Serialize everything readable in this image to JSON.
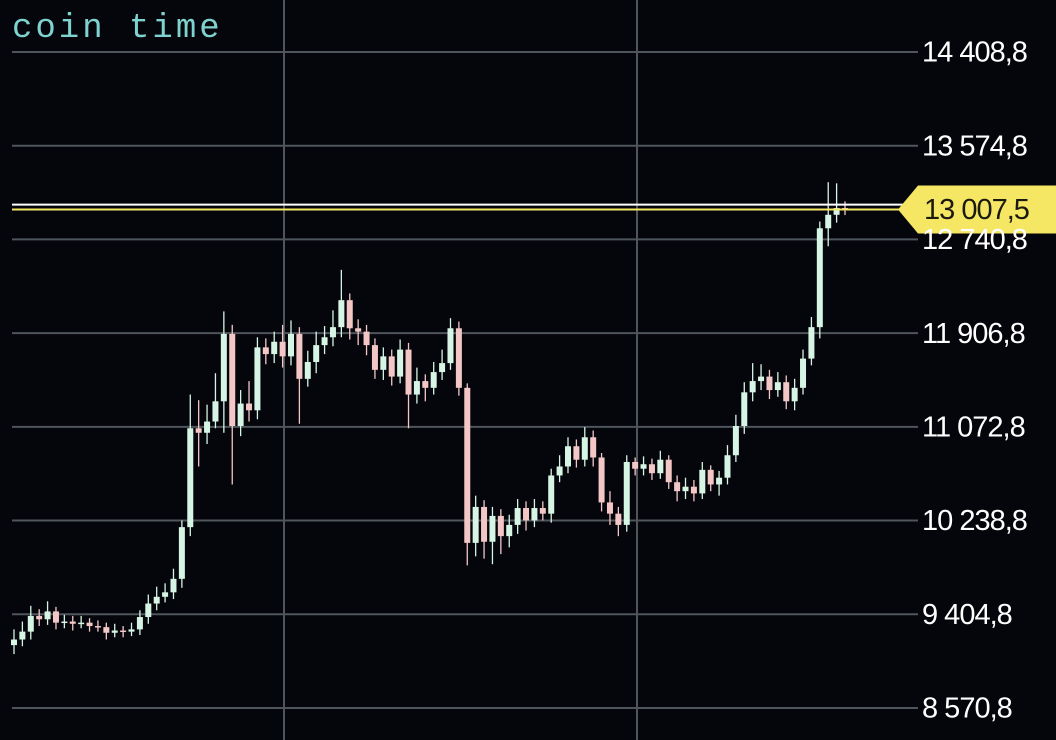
{
  "chart_data": {
    "type": "candlestick",
    "title": "coin time",
    "ylim": [
      8285.6,
      14871.6
    ],
    "yticks": [
      {
        "value": 14408.8,
        "label": "14 408,8"
      },
      {
        "value": 13574.8,
        "label": "13 574,8"
      },
      {
        "value": 12740.8,
        "label": "12 740,8"
      },
      {
        "value": 11906.8,
        "label": "11 906,8"
      },
      {
        "value": 11072.8,
        "label": "11 072,8"
      },
      {
        "value": 10238.8,
        "label": "10 238,8"
      },
      {
        "value": 9404.8,
        "label": "9 404,8"
      },
      {
        "value": 8570.8,
        "label": "8 570,8"
      }
    ],
    "grid": true,
    "up_color": "#d6f5e4",
    "down_color": "#f4c7c7",
    "open": [
      9130,
      9180,
      9250,
      9390,
      9360,
      9430,
      9330,
      9340,
      9320,
      9330,
      9300,
      9290,
      9240,
      9260,
      9250,
      9270,
      9380,
      9500,
      9560,
      9600,
      9720,
      10180,
      11060,
      11020,
      11120,
      11300,
      11900,
      11080,
      11280,
      11220,
      11780,
      11720,
      11830,
      11700,
      11900,
      11500,
      11650,
      11800,
      11870,
      11960,
      12200,
      11950,
      11920,
      11800,
      11580,
      11700,
      11520,
      11760,
      11360,
      11480,
      11420,
      11560,
      11640,
      11950,
      11420,
      10040,
      10360,
      10050,
      10280,
      10100,
      10200,
      10350,
      10240,
      10350,
      10300,
      10640,
      10720,
      10900,
      10780,
      10980,
      10800,
      10400,
      10300,
      10200,
      10760,
      10700,
      10740,
      10660,
      10780,
      10580,
      10500,
      10540,
      10480,
      10690,
      10560,
      10620,
      10820,
      11080,
      11380,
      11480,
      11520,
      11400,
      11470,
      11300,
      11420,
      11680,
      11960,
      12840,
      12960,
      13020
    ],
    "high": [
      9270,
      9340,
      9480,
      9450,
      9520,
      9470,
      9400,
      9390,
      9390,
      9370,
      9350,
      9330,
      9320,
      9300,
      9330,
      9440,
      9580,
      9650,
      9680,
      9810,
      10240,
      11360,
      11310,
      11270,
      11550,
      12100,
      11980,
      11400,
      11480,
      11870,
      11860,
      11920,
      11980,
      12020,
      11960,
      11750,
      11920,
      11970,
      12110,
      12470,
      12260,
      12030,
      11980,
      11860,
      11780,
      11760,
      11850,
      11820,
      11600,
      11540,
      11650,
      11760,
      12040,
      12010,
      11460,
      10460,
      10420,
      10360,
      10340,
      10290,
      10430,
      10410,
      10430,
      10410,
      10700,
      10820,
      10980,
      10960,
      11070,
      11040,
      10840,
      10500,
      10360,
      10820,
      10800,
      10810,
      10790,
      10860,
      10820,
      10640,
      10620,
      10600,
      10760,
      10730,
      10680,
      10910,
      11180,
      11470,
      11640,
      11630,
      11580,
      11560,
      11530,
      11500,
      11760,
      12050,
      12900,
      13250,
      13240,
      13080
    ],
    "low": [
      9050,
      9120,
      9180,
      9300,
      9310,
      9270,
      9280,
      9260,
      9280,
      9250,
      9250,
      9180,
      9200,
      9200,
      9210,
      9220,
      9320,
      9440,
      9510,
      9540,
      9640,
      10100,
      10720,
      10920,
      11060,
      11020,
      10560,
      10990,
      11120,
      11140,
      11630,
      11640,
      11600,
      11620,
      11100,
      11430,
      11550,
      11720,
      11790,
      11870,
      11850,
      11800,
      11710,
      11500,
      11490,
      11440,
      11460,
      11060,
      11280,
      11300,
      11360,
      11490,
      11580,
      11350,
      9840,
      9920,
      9900,
      9850,
      9940,
      10000,
      10120,
      10150,
      10180,
      10240,
      10220,
      10580,
      10660,
      10710,
      10720,
      10720,
      10320,
      10200,
      10100,
      10140,
      10640,
      10640,
      10600,
      10610,
      10520,
      10410,
      10430,
      10410,
      10430,
      10500,
      10460,
      10560,
      10760,
      11010,
      11300,
      11400,
      11320,
      11340,
      11230,
      11220,
      11360,
      11620,
      11860,
      12680,
      12890,
      12957.5
    ],
    "close": [
      9180,
      9250,
      9390,
      9360,
      9430,
      9330,
      9340,
      9320,
      9330,
      9300,
      9290,
      9240,
      9260,
      9250,
      9270,
      9380,
      9500,
      9560,
      9600,
      9720,
      10180,
      11060,
      11020,
      11120,
      11300,
      11900,
      11080,
      11280,
      11220,
      11780,
      11720,
      11830,
      11700,
      11900,
      11500,
      11650,
      11800,
      11870,
      11960,
      12200,
      11950,
      11920,
      11800,
      11580,
      11700,
      11520,
      11760,
      11360,
      11480,
      11420,
      11560,
      11640,
      11950,
      11420,
      10040,
      10360,
      10050,
      10280,
      10100,
      10200,
      10350,
      10240,
      10350,
      10300,
      10640,
      10720,
      10900,
      10780,
      10980,
      10800,
      10400,
      10300,
      10200,
      10760,
      10700,
      10740,
      10660,
      10780,
      10580,
      10500,
      10540,
      10480,
      10690,
      10560,
      10620,
      10820,
      11080,
      11380,
      11480,
      11520,
      11400,
      11470,
      11300,
      11420,
      11680,
      11960,
      12840,
      12960,
      13020,
      13007.5
    ],
    "hlines": [
      {
        "value": 13050,
        "color": "#ffffff"
      },
      {
        "value": 13007.5,
        "label": "13 007,5",
        "color": "#f5e663"
      }
    ]
  }
}
